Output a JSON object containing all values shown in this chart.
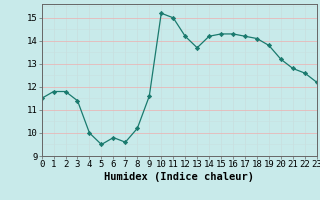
{
  "x": [
    0,
    1,
    2,
    3,
    4,
    5,
    6,
    7,
    8,
    9,
    10,
    11,
    12,
    13,
    14,
    15,
    16,
    17,
    18,
    19,
    20,
    21,
    22,
    23
  ],
  "y": [
    11.5,
    11.8,
    11.8,
    11.4,
    10.0,
    9.5,
    9.8,
    9.6,
    10.2,
    11.6,
    15.2,
    15.0,
    14.2,
    13.7,
    14.2,
    14.3,
    14.3,
    14.2,
    14.1,
    13.8,
    13.2,
    12.8,
    12.6,
    12.2
  ],
  "line_color": "#1a7a6e",
  "marker": "D",
  "marker_size": 2.2,
  "bg_color": "#c8eaea",
  "grid_major_color": "#e8b8b8",
  "grid_minor_color": "#c8e0e0",
  "xlabel": "Humidex (Indice chaleur)",
  "xlim": [
    0,
    23
  ],
  "ylim": [
    9,
    15.6
  ],
  "yticks": [
    9,
    10,
    11,
    12,
    13,
    14,
    15
  ],
  "xticks": [
    0,
    1,
    2,
    3,
    4,
    5,
    6,
    7,
    8,
    9,
    10,
    11,
    12,
    13,
    14,
    15,
    16,
    17,
    18,
    19,
    20,
    21,
    22,
    23
  ],
  "tick_fontsize": 6.5,
  "xlabel_fontsize": 7.5
}
